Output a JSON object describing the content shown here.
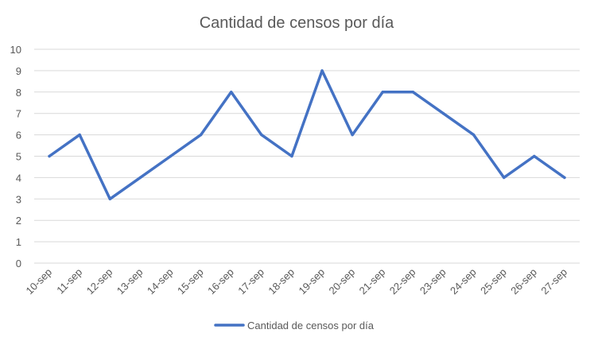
{
  "chart_data": {
    "type": "line",
    "title": "Cantidad de censos por día",
    "xlabel": "",
    "ylabel": "",
    "categories": [
      "10-sep",
      "11-sep",
      "12-sep",
      "13-sep",
      "14-sep",
      "15-sep",
      "16-sep",
      "17-sep",
      "18-sep",
      "19-sep",
      "20-sep",
      "21-sep",
      "22-sep",
      "23-sep",
      "24-sep",
      "25-sep",
      "26-sep",
      "27-sep"
    ],
    "series": [
      {
        "name": "Cantidad de censos por día",
        "color": "#4472C4",
        "values": [
          5,
          6,
          3,
          4,
          5,
          6,
          8,
          6,
          5,
          9,
          6,
          8,
          8,
          7,
          6,
          4,
          5,
          4
        ]
      }
    ],
    "ylim": [
      0,
      10
    ],
    "yticks": [
      0,
      1,
      2,
      3,
      4,
      5,
      6,
      7,
      8,
      9,
      10
    ],
    "grid": true,
    "grid_color": "#D9D9D9",
    "legend_position": "bottom"
  }
}
